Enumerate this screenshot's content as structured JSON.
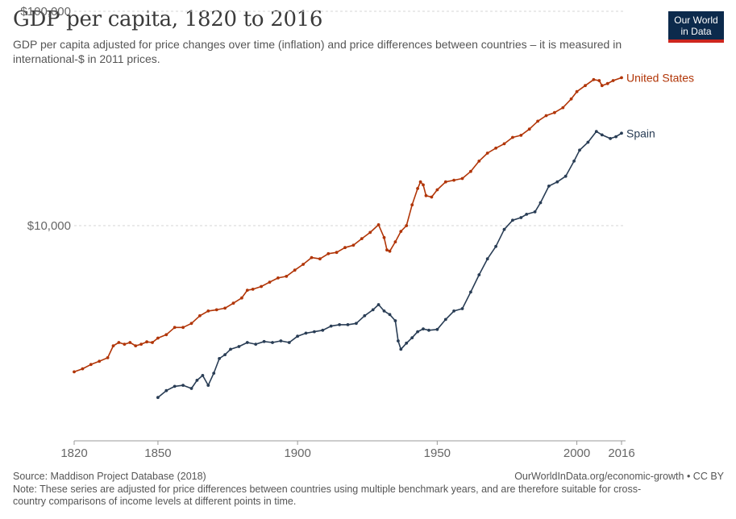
{
  "header": {
    "title": "GDP per capita, 1820 to 2016",
    "subtitle": "GDP per capita adjusted for price changes over time (inflation) and price differences between countries – it is measured in international-$ in 2011 prices."
  },
  "logo": {
    "line1": "Our World",
    "line2": "in Data",
    "bg": "#0c2a4c",
    "accent": "#ce261e"
  },
  "footer": {
    "source": "Source: Maddison Project Database (2018)",
    "attribution": "OurWorldInData.org/economic-growth • CC BY",
    "note": "Note: These series are adjusted for price differences between countries using multiple benchmark years, and are therefore suitable for cross-country comparisons of income levels at different points in time."
  },
  "chart_data": {
    "type": "line",
    "title": "GDP per capita, 1820 to 2016",
    "xlabel": "",
    "ylabel": "",
    "xlim": [
      1820,
      2016
    ],
    "ylim": [
      1000,
      100000
    ],
    "yscale": "log",
    "grid": "horizontal dashed",
    "legend": "line-end labels",
    "x_ticks": [
      "1820",
      "1850",
      "1900",
      "1950",
      "2000",
      "2016"
    ],
    "y_ticks": [
      {
        "value": 10000,
        "label": "$10,000"
      },
      {
        "value": 100000,
        "label": "$100,000"
      }
    ],
    "series": [
      {
        "name": "United States",
        "color": "#b13507",
        "points": [
          [
            1820,
            2080
          ],
          [
            1823,
            2150
          ],
          [
            1826,
            2250
          ],
          [
            1829,
            2330
          ],
          [
            1832,
            2420
          ],
          [
            1834,
            2750
          ],
          [
            1836,
            2850
          ],
          [
            1838,
            2800
          ],
          [
            1840,
            2850
          ],
          [
            1842,
            2750
          ],
          [
            1844,
            2800
          ],
          [
            1846,
            2870
          ],
          [
            1848,
            2850
          ],
          [
            1850,
            2990
          ],
          [
            1853,
            3100
          ],
          [
            1856,
            3350
          ],
          [
            1859,
            3350
          ],
          [
            1862,
            3500
          ],
          [
            1865,
            3800
          ],
          [
            1868,
            4000
          ],
          [
            1871,
            4050
          ],
          [
            1874,
            4120
          ],
          [
            1877,
            4350
          ],
          [
            1880,
            4600
          ],
          [
            1882,
            5000
          ],
          [
            1884,
            5050
          ],
          [
            1887,
            5200
          ],
          [
            1890,
            5450
          ],
          [
            1893,
            5700
          ],
          [
            1896,
            5800
          ],
          [
            1899,
            6200
          ],
          [
            1902,
            6600
          ],
          [
            1905,
            7100
          ],
          [
            1908,
            7000
          ],
          [
            1911,
            7400
          ],
          [
            1914,
            7500
          ],
          [
            1917,
            7900
          ],
          [
            1920,
            8100
          ],
          [
            1923,
            8700
          ],
          [
            1926,
            9300
          ],
          [
            1929,
            10100
          ],
          [
            1931,
            8800
          ],
          [
            1932,
            7700
          ],
          [
            1933,
            7600
          ],
          [
            1935,
            8400
          ],
          [
            1937,
            9400
          ],
          [
            1939,
            10000
          ],
          [
            1941,
            12500
          ],
          [
            1943,
            14900
          ],
          [
            1944,
            16000
          ],
          [
            1945,
            15500
          ],
          [
            1946,
            13800
          ],
          [
            1948,
            13600
          ],
          [
            1950,
            14700
          ],
          [
            1953,
            16000
          ],
          [
            1956,
            16300
          ],
          [
            1959,
            16600
          ],
          [
            1962,
            17900
          ],
          [
            1965,
            20000
          ],
          [
            1968,
            21800
          ],
          [
            1971,
            23000
          ],
          [
            1974,
            24100
          ],
          [
            1977,
            25800
          ],
          [
            1980,
            26400
          ],
          [
            1983,
            28200
          ],
          [
            1986,
            30700
          ],
          [
            1989,
            32600
          ],
          [
            1992,
            33700
          ],
          [
            1995,
            35500
          ],
          [
            1998,
            39000
          ],
          [
            2000,
            42200
          ],
          [
            2003,
            45000
          ],
          [
            2006,
            48000
          ],
          [
            2008,
            47500
          ],
          [
            2009,
            45000
          ],
          [
            2011,
            46000
          ],
          [
            2013,
            47500
          ],
          [
            2016,
            49000
          ]
        ]
      },
      {
        "name": "Spain",
        "color": "#293d55",
        "points": [
          [
            1850,
            1580
          ],
          [
            1853,
            1700
          ],
          [
            1856,
            1780
          ],
          [
            1859,
            1800
          ],
          [
            1862,
            1740
          ],
          [
            1864,
            1900
          ],
          [
            1866,
            2000
          ],
          [
            1868,
            1800
          ],
          [
            1870,
            2050
          ],
          [
            1872,
            2400
          ],
          [
            1874,
            2500
          ],
          [
            1876,
            2650
          ],
          [
            1879,
            2730
          ],
          [
            1882,
            2850
          ],
          [
            1885,
            2800
          ],
          [
            1888,
            2880
          ],
          [
            1891,
            2850
          ],
          [
            1894,
            2900
          ],
          [
            1897,
            2850
          ],
          [
            1900,
            3050
          ],
          [
            1903,
            3150
          ],
          [
            1906,
            3200
          ],
          [
            1909,
            3250
          ],
          [
            1912,
            3400
          ],
          [
            1915,
            3450
          ],
          [
            1918,
            3450
          ],
          [
            1921,
            3500
          ],
          [
            1924,
            3800
          ],
          [
            1927,
            4050
          ],
          [
            1929,
            4280
          ],
          [
            1931,
            4000
          ],
          [
            1933,
            3850
          ],
          [
            1935,
            3600
          ],
          [
            1936,
            2900
          ],
          [
            1937,
            2650
          ],
          [
            1939,
            2830
          ],
          [
            1941,
            3000
          ],
          [
            1943,
            3200
          ],
          [
            1945,
            3300
          ],
          [
            1947,
            3250
          ],
          [
            1950,
            3280
          ],
          [
            1953,
            3650
          ],
          [
            1956,
            4000
          ],
          [
            1959,
            4100
          ],
          [
            1962,
            4900
          ],
          [
            1965,
            5900
          ],
          [
            1968,
            7000
          ],
          [
            1971,
            8000
          ],
          [
            1974,
            9600
          ],
          [
            1977,
            10600
          ],
          [
            1980,
            10900
          ],
          [
            1982,
            11300
          ],
          [
            1985,
            11600
          ],
          [
            1987,
            12800
          ],
          [
            1990,
            15300
          ],
          [
            1993,
            16000
          ],
          [
            1996,
            17000
          ],
          [
            1999,
            20000
          ],
          [
            2001,
            22500
          ],
          [
            2004,
            24500
          ],
          [
            2007,
            27500
          ],
          [
            2009,
            26500
          ],
          [
            2012,
            25500
          ],
          [
            2014,
            26000
          ],
          [
            2016,
            27000
          ]
        ]
      }
    ]
  }
}
